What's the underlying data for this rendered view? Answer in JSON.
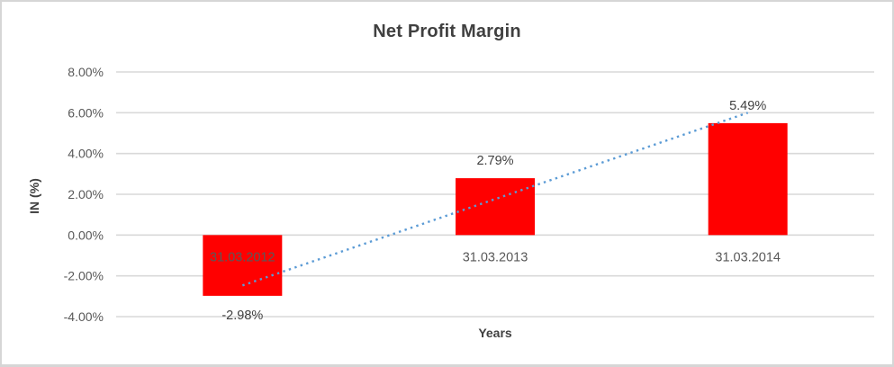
{
  "chart": {
    "title": "Net Profit Margin",
    "ylabel": "IN (%)",
    "xlabel": "Years"
  },
  "chart_data": {
    "type": "bar",
    "title": "Net Profit Margin",
    "xlabel": "Years",
    "ylabel": "IN (%)",
    "categories": [
      "31.03.2012",
      "31.03.2013",
      "31.03.2014"
    ],
    "values": [
      -2.98,
      2.79,
      5.49
    ],
    "value_labels": [
      "-2.98%",
      "2.79%",
      "5.49%"
    ],
    "ylim": [
      -4,
      8
    ],
    "ytick_step": 2,
    "ytick_labels": [
      "8.00%",
      "6.00%",
      "4.00%",
      "2.00%",
      "0.00%",
      "-2.00%",
      "-4.00%"
    ],
    "grid": true,
    "legend": false,
    "trendline": {
      "type": "linear",
      "style": "dotted",
      "start_value": -2.47,
      "end_value": 6.0
    },
    "colors": {
      "bar": "#FF0000",
      "trendline": "#5B9BD5",
      "gridline": "#D9D9D9",
      "tick_text": "#595959",
      "label_text": "#404040",
      "title_text": "#404040",
      "background": "#FFFFFF",
      "border": "#D6D6D6"
    }
  }
}
